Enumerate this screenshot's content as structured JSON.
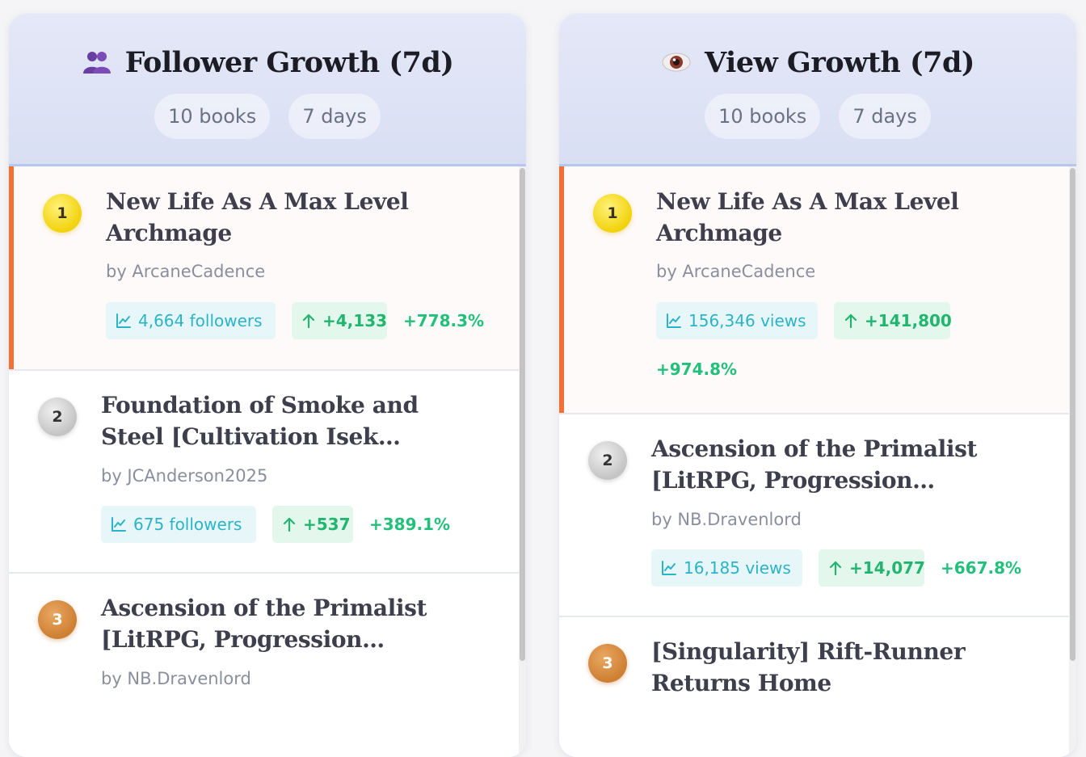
{
  "colors": {
    "accent_bar": "#f36f36",
    "total_chip": "#2bb3c8",
    "gain_chip": "#21b56f",
    "percent": "#22c07a",
    "rank_gold": "#f2d20c",
    "rank_silver": "#c4c4c4",
    "rank_bronze": "#cd7f32"
  },
  "followers_panel": {
    "title": "Follower Growth (7d)",
    "icon": "people-icon",
    "chip_books": "10 books",
    "chip_days": "7 days",
    "items": [
      {
        "rank": "1",
        "title": "New Life As A Max Level Archmage",
        "author": "by ArcaneCadence",
        "total": "4,664 followers",
        "gain": "+4,133",
        "percent": "+778.3%"
      },
      {
        "rank": "2",
        "title": "Foundation of Smoke and Steel [Cultivation Isek…",
        "author": "by JCAnderson2025",
        "total": "675 followers",
        "gain": "+537",
        "percent": "+389.1%"
      },
      {
        "rank": "3",
        "title": "Ascension of the Primalist [LitRPG, Progression…",
        "author": "by NB.Dravenlord"
      }
    ]
  },
  "views_panel": {
    "title": "View Growth (7d)",
    "icon": "eye-icon",
    "chip_books": "10 books",
    "chip_days": "7 days",
    "items": [
      {
        "rank": "1",
        "title": "New Life As A Max Level Archmage",
        "author": "by ArcaneCadence",
        "total": "156,346 views",
        "gain": "+141,800",
        "percent": "+974.8%"
      },
      {
        "rank": "2",
        "title": "Ascension of the Primalist [LitRPG, Progression…",
        "author": "by NB.Dravenlord",
        "total": "16,185 views",
        "gain": "+14,077",
        "percent": "+667.8%"
      },
      {
        "rank": "3",
        "title": "[Singularity] Rift-Runner Returns Home"
      }
    ]
  }
}
